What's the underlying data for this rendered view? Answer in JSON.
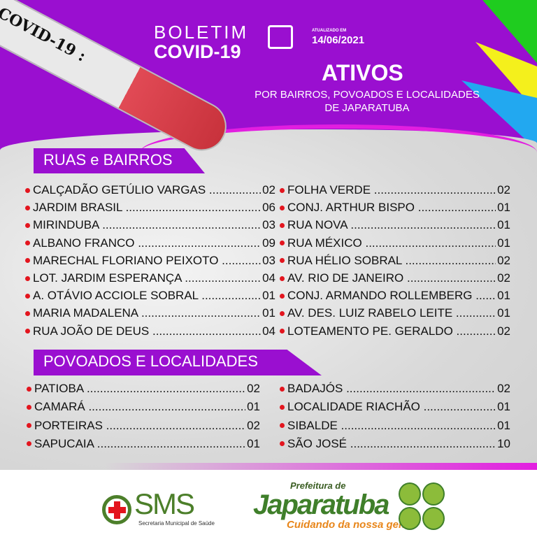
{
  "header": {
    "tube_label": "COVID-19 :",
    "title_line1": "BOLETIM",
    "title_line2": "COVID-19",
    "updated_label": "ATUALIZADO EM",
    "updated_date": "14/06/2021",
    "main_title": "ATIVOS",
    "subtitle_line1": "POR BAIRROS, POVOADOS E LOCALIDADES",
    "subtitle_line2": "DE JAPARATUBA"
  },
  "colors": {
    "purple": "#9a0fd0",
    "bullet": "#e3151e",
    "pink": "#e21ee0",
    "green": "#4c7f2a",
    "orange": "#e8861a"
  },
  "ruas": {
    "heading": "RUAS e BAIRROS",
    "left": [
      {
        "name": "CALÇADÃO GETÚLIO VARGAS",
        "value": "02"
      },
      {
        "name": "JARDIM BRASIL",
        "value": "06"
      },
      {
        "name": "MIRINDUBA",
        "value": "03"
      },
      {
        "name": "ALBANO FRANCO",
        "value": "09"
      },
      {
        "name": "MARECHAL FLORIANO PEIXOTO",
        "value": "03"
      },
      {
        "name": "LOT. JARDIM ESPERANÇA",
        "value": "04"
      },
      {
        "name": "A. OTÁVIO ACCIOLE SOBRAL",
        "value": "01"
      },
      {
        "name": "MARIA MADALENA",
        "value": "01"
      },
      {
        "name": "RUA JOÃO DE DEUS",
        "value": "04"
      }
    ],
    "right": [
      {
        "name": "FOLHA VERDE",
        "value": "02"
      },
      {
        "name": "CONJ. ARTHUR BISPO",
        "value": "01"
      },
      {
        "name": "RUA NOVA",
        "value": "01"
      },
      {
        "name": "RUA MÉXICO",
        "value": "01"
      },
      {
        "name": "RUA HÉLIO SOBRAL",
        "value": "02"
      },
      {
        "name": "AV. RIO DE JANEIRO",
        "value": "02"
      },
      {
        "name": "CONJ. ARMANDO ROLLEMBERG",
        "value": "01"
      },
      {
        "name": "AV. DES. LUIZ RABELO LEITE",
        "value": "01"
      },
      {
        "name": "LOTEAMENTO  PE. GERALDO",
        "value": "02"
      }
    ]
  },
  "povoados": {
    "heading": "POVOADOS E LOCALIDADES",
    "left": [
      {
        "name": "PATIOBA",
        "value": "02"
      },
      {
        "name": "CAMARÁ",
        "value": "01"
      },
      {
        "name": "PORTEIRAS",
        "value": "02"
      },
      {
        "name": "SAPUCAIA",
        "value": "01"
      }
    ],
    "right": [
      {
        "name": "BADAJÓS",
        "value": "02"
      },
      {
        "name": "LOCALIDADE  RIACHÃO",
        "value": "01"
      },
      {
        "name": "SIBALDE",
        "value": "01"
      },
      {
        "name": "SÃO JOSÉ",
        "value": "10"
      }
    ]
  },
  "footer": {
    "sms": "SMS",
    "sms_sub": "Secretaria Municipal de Saúde",
    "pref": "Prefeitura de",
    "japa": "Japaratuba",
    "slogan": "Cuidando da nossa gente"
  }
}
